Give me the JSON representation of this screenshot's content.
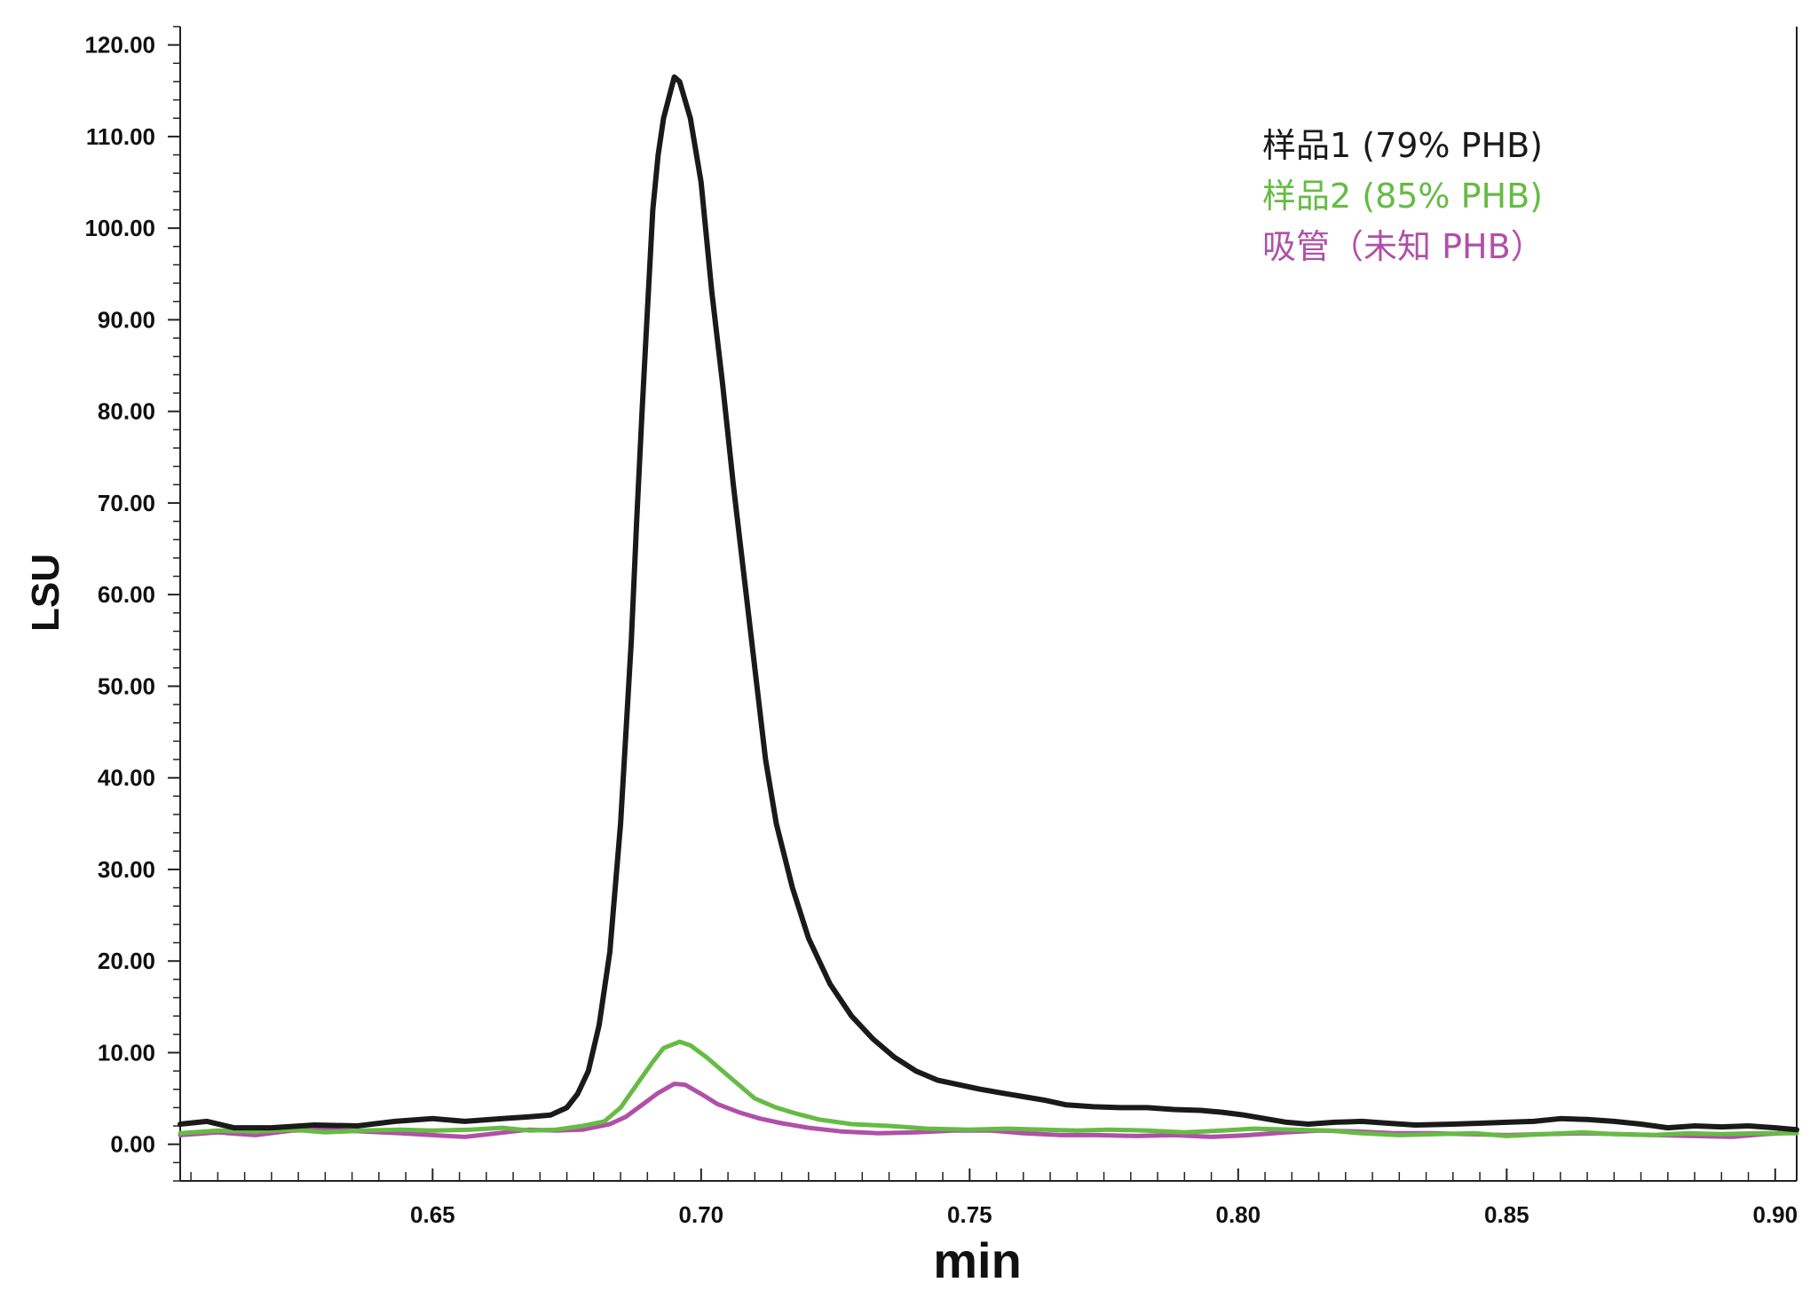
{
  "chart_data": {
    "type": "line",
    "xlabel": "min",
    "ylabel": "LSU",
    "xlim": [
      0.603,
      0.904
    ],
    "ylim": [
      -4,
      122
    ],
    "x_ticks": [
      0.65,
      0.7,
      0.75,
      0.8,
      0.85,
      0.9
    ],
    "x_tick_labels": [
      "0.65",
      "0.70",
      "0.75",
      "0.80",
      "0.85",
      "0.90"
    ],
    "y_ticks": [
      0,
      10,
      20,
      30,
      40,
      50,
      60,
      70,
      80,
      90,
      100,
      110,
      120
    ],
    "y_tick_labels": [
      "0.00",
      "10.00",
      "20.00",
      "30.00",
      "40.00",
      "50.00",
      "60.00",
      "70.00",
      "80.00",
      "90.00",
      "100.00",
      "110.00",
      "120.00"
    ],
    "grid": false,
    "legend_position": "top-right",
    "series": [
      {
        "name": "样品1 (79% PHB)",
        "color": "#1a1a1a",
        "points": [
          [
            0.603,
            2.2
          ],
          [
            0.608,
            2.5
          ],
          [
            0.613,
            1.8
          ],
          [
            0.62,
            1.8
          ],
          [
            0.628,
            2.1
          ],
          [
            0.636,
            2.0
          ],
          [
            0.643,
            2.5
          ],
          [
            0.65,
            2.8
          ],
          [
            0.656,
            2.5
          ],
          [
            0.663,
            2.8
          ],
          [
            0.668,
            3.0
          ],
          [
            0.672,
            3.2
          ],
          [
            0.675,
            4.0
          ],
          [
            0.677,
            5.5
          ],
          [
            0.679,
            8.0
          ],
          [
            0.681,
            13.0
          ],
          [
            0.683,
            21.0
          ],
          [
            0.685,
            35.0
          ],
          [
            0.687,
            55.0
          ],
          [
            0.688,
            68.0
          ],
          [
            0.689,
            80.0
          ],
          [
            0.69,
            91.0
          ],
          [
            0.691,
            102.0
          ],
          [
            0.692,
            108.0
          ],
          [
            0.693,
            112.0
          ],
          [
            0.695,
            116.5
          ],
          [
            0.696,
            116.0
          ],
          [
            0.698,
            112.0
          ],
          [
            0.7,
            105.0
          ],
          [
            0.702,
            93.0
          ],
          [
            0.704,
            83.0
          ],
          [
            0.706,
            72.0
          ],
          [
            0.708,
            62.0
          ],
          [
            0.71,
            52.0
          ],
          [
            0.712,
            42.0
          ],
          [
            0.714,
            35.0
          ],
          [
            0.717,
            28.0
          ],
          [
            0.72,
            22.5
          ],
          [
            0.724,
            17.5
          ],
          [
            0.728,
            14.0
          ],
          [
            0.732,
            11.5
          ],
          [
            0.736,
            9.5
          ],
          [
            0.74,
            8.0
          ],
          [
            0.744,
            7.0
          ],
          [
            0.748,
            6.5
          ],
          [
            0.752,
            6.0
          ],
          [
            0.756,
            5.6
          ],
          [
            0.76,
            5.2
          ],
          [
            0.764,
            4.8
          ],
          [
            0.768,
            4.3
          ],
          [
            0.773,
            4.1
          ],
          [
            0.778,
            4.0
          ],
          [
            0.783,
            4.0
          ],
          [
            0.788,
            3.8
          ],
          [
            0.793,
            3.7
          ],
          [
            0.797,
            3.5
          ],
          [
            0.801,
            3.2
          ],
          [
            0.805,
            2.8
          ],
          [
            0.809,
            2.4
          ],
          [
            0.813,
            2.2
          ],
          [
            0.818,
            2.4
          ],
          [
            0.823,
            2.5
          ],
          [
            0.828,
            2.3
          ],
          [
            0.833,
            2.1
          ],
          [
            0.84,
            2.2
          ],
          [
            0.845,
            2.3
          ],
          [
            0.85,
            2.4
          ],
          [
            0.855,
            2.5
          ],
          [
            0.86,
            2.8
          ],
          [
            0.865,
            2.7
          ],
          [
            0.87,
            2.5
          ],
          [
            0.875,
            2.2
          ],
          [
            0.88,
            1.8
          ],
          [
            0.885,
            2.0
          ],
          [
            0.89,
            1.9
          ],
          [
            0.895,
            2.0
          ],
          [
            0.9,
            1.8
          ],
          [
            0.904,
            1.6
          ]
        ]
      },
      {
        "name": "样品2 (85% PHB)",
        "color": "#66bb44",
        "points": [
          [
            0.603,
            1.2
          ],
          [
            0.61,
            1.5
          ],
          [
            0.617,
            1.4
          ],
          [
            0.624,
            1.6
          ],
          [
            0.63,
            1.3
          ],
          [
            0.637,
            1.5
          ],
          [
            0.644,
            1.6
          ],
          [
            0.65,
            1.5
          ],
          [
            0.657,
            1.6
          ],
          [
            0.663,
            1.8
          ],
          [
            0.668,
            1.5
          ],
          [
            0.673,
            1.6
          ],
          [
            0.678,
            2.0
          ],
          [
            0.682,
            2.5
          ],
          [
            0.685,
            4.0
          ],
          [
            0.688,
            6.5
          ],
          [
            0.691,
            9.0
          ],
          [
            0.693,
            10.5
          ],
          [
            0.696,
            11.2
          ],
          [
            0.698,
            10.8
          ],
          [
            0.701,
            9.5
          ],
          [
            0.704,
            8.0
          ],
          [
            0.707,
            6.5
          ],
          [
            0.71,
            5.0
          ],
          [
            0.714,
            4.0
          ],
          [
            0.718,
            3.3
          ],
          [
            0.722,
            2.7
          ],
          [
            0.728,
            2.2
          ],
          [
            0.735,
            2.0
          ],
          [
            0.742,
            1.7
          ],
          [
            0.75,
            1.6
          ],
          [
            0.757,
            1.7
          ],
          [
            0.764,
            1.6
          ],
          [
            0.77,
            1.5
          ],
          [
            0.776,
            1.6
          ],
          [
            0.783,
            1.5
          ],
          [
            0.79,
            1.3
          ],
          [
            0.797,
            1.5
          ],
          [
            0.803,
            1.7
          ],
          [
            0.81,
            1.6
          ],
          [
            0.817,
            1.5
          ],
          [
            0.823,
            1.2
          ],
          [
            0.83,
            1.0
          ],
          [
            0.837,
            1.1
          ],
          [
            0.844,
            1.2
          ],
          [
            0.85,
            0.9
          ],
          [
            0.857,
            1.1
          ],
          [
            0.864,
            1.3
          ],
          [
            0.87,
            1.1
          ],
          [
            0.877,
            1.0
          ],
          [
            0.884,
            1.2
          ],
          [
            0.89,
            1.1
          ],
          [
            0.897,
            1.2
          ],
          [
            0.904,
            1.2
          ]
        ]
      },
      {
        "name": "吸管（未知 PHB）",
        "color": "#b050a8",
        "points": [
          [
            0.603,
            1.0
          ],
          [
            0.61,
            1.3
          ],
          [
            0.617,
            1.0
          ],
          [
            0.624,
            1.5
          ],
          [
            0.63,
            1.6
          ],
          [
            0.637,
            1.4
          ],
          [
            0.644,
            1.2
          ],
          [
            0.65,
            1.0
          ],
          [
            0.656,
            0.8
          ],
          [
            0.662,
            1.2
          ],
          [
            0.668,
            1.6
          ],
          [
            0.673,
            1.5
          ],
          [
            0.678,
            1.6
          ],
          [
            0.683,
            2.2
          ],
          [
            0.686,
            3.0
          ],
          [
            0.689,
            4.3
          ],
          [
            0.692,
            5.6
          ],
          [
            0.695,
            6.6
          ],
          [
            0.697,
            6.5
          ],
          [
            0.7,
            5.5
          ],
          [
            0.703,
            4.4
          ],
          [
            0.707,
            3.5
          ],
          [
            0.711,
            2.8
          ],
          [
            0.715,
            2.3
          ],
          [
            0.72,
            1.8
          ],
          [
            0.726,
            1.4
          ],
          [
            0.733,
            1.2
          ],
          [
            0.74,
            1.3
          ],
          [
            0.747,
            1.5
          ],
          [
            0.754,
            1.5
          ],
          [
            0.76,
            1.2
          ],
          [
            0.767,
            1.0
          ],
          [
            0.774,
            1.0
          ],
          [
            0.781,
            0.9
          ],
          [
            0.788,
            1.0
          ],
          [
            0.795,
            0.8
          ],
          [
            0.802,
            1.0
          ],
          [
            0.809,
            1.3
          ],
          [
            0.815,
            1.5
          ],
          [
            0.822,
            1.4
          ],
          [
            0.829,
            1.2
          ],
          [
            0.836,
            1.2
          ],
          [
            0.843,
            1.1
          ],
          [
            0.85,
            1.0
          ],
          [
            0.857,
            1.1
          ],
          [
            0.864,
            1.2
          ],
          [
            0.871,
            1.1
          ],
          [
            0.878,
            1.0
          ],
          [
            0.885,
            0.9
          ],
          [
            0.892,
            0.8
          ],
          [
            0.898,
            1.1
          ],
          [
            0.904,
            1.3
          ]
        ]
      }
    ]
  }
}
